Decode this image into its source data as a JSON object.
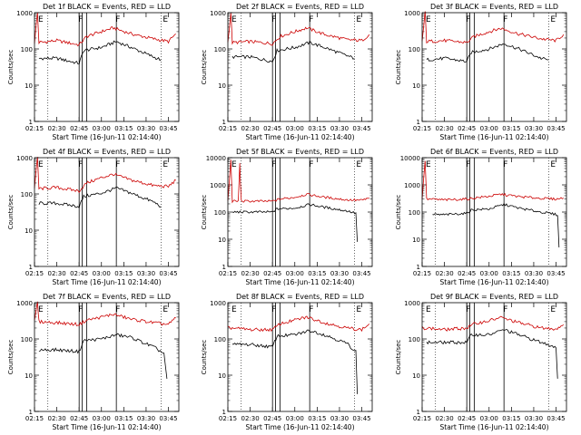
{
  "chart_data": [
    {
      "type": "line",
      "title": "Det 1f BLACK = Events, RED = LLD",
      "xlabel": "Start Time (16-Jun-11 02:14:40)",
      "ylabel": "Counts/sec",
      "yscale": "log",
      "ylim": [
        1,
        1000
      ],
      "xlim": [
        "02:15",
        "03:52"
      ],
      "x_ticks": [
        "02:15",
        "02:30",
        "02:45",
        "03:00",
        "03:15",
        "03:30",
        "03:45"
      ],
      "y_ticks": [
        "1",
        "10",
        "100",
        "1000"
      ],
      "markers": [
        "F",
        "F",
        "E"
      ],
      "series": [
        {
          "color": "#cc0000",
          "x": [
            "02:15",
            "02:17",
            "02:18",
            "02:30",
            "02:45",
            "02:50",
            "03:00",
            "03:08",
            "03:20",
            "03:35",
            "03:45",
            "03:50"
          ],
          "values": [
            150,
            1000,
            150,
            170,
            130,
            220,
            300,
            380,
            260,
            190,
            160,
            260
          ]
        },
        {
          "color": "#000000",
          "x": [
            "02:18",
            "02:30",
            "02:45",
            "02:48",
            "03:00",
            "03:10",
            "03:20",
            "03:35",
            "03:40"
          ],
          "values": [
            55,
            55,
            40,
            90,
            110,
            160,
            110,
            60,
            50
          ]
        }
      ]
    },
    {
      "type": "line",
      "title": "Det 2f BLACK = Events, RED = LLD",
      "xlabel": "Start Time (16-Jun-11 02:14:40)",
      "ylabel": "Counts/sec",
      "yscale": "log",
      "ylim": [
        1,
        1000
      ],
      "xlim": [
        "02:15",
        "03:52"
      ],
      "x_ticks": [
        "02:15",
        "02:30",
        "02:45",
        "03:00",
        "03:15",
        "03:30",
        "03:45"
      ],
      "y_ticks": [
        "1",
        "10",
        "100",
        "1000"
      ],
      "markers": [
        "F",
        "F",
        "E"
      ],
      "series": [
        {
          "color": "#cc0000",
          "x": [
            "02:15",
            "02:17",
            "02:18",
            "02:30",
            "02:45",
            "02:50",
            "03:00",
            "03:08",
            "03:20",
            "03:35",
            "03:45",
            "03:50"
          ],
          "values": [
            150,
            1000,
            150,
            160,
            140,
            220,
            300,
            380,
            250,
            180,
            170,
            250
          ]
        },
        {
          "color": "#000000",
          "x": [
            "02:18",
            "02:30",
            "02:45",
            "02:48",
            "03:00",
            "03:10",
            "03:20",
            "03:35",
            "03:40"
          ],
          "values": [
            60,
            60,
            45,
            90,
            110,
            150,
            110,
            65,
            55
          ]
        }
      ]
    },
    {
      "type": "line",
      "title": "Det 3f BLACK = Events, RED = LLD",
      "xlabel": "Start Time (16-Jun-11 02:14:40)",
      "ylabel": "Counts/sec",
      "yscale": "log",
      "ylim": [
        1,
        1000
      ],
      "xlim": [
        "02:15",
        "03:52"
      ],
      "x_ticks": [
        "02:15",
        "02:30",
        "02:45",
        "03:00",
        "03:15",
        "03:30",
        "03:45"
      ],
      "y_ticks": [
        "1",
        "10",
        "100",
        "1000"
      ],
      "markers": [
        "F",
        "F",
        "E"
      ],
      "series": [
        {
          "color": "#cc0000",
          "x": [
            "02:15",
            "02:17",
            "02:18",
            "02:30",
            "02:45",
            "02:50",
            "03:00",
            "03:08",
            "03:20",
            "03:35",
            "03:45",
            "03:50"
          ],
          "values": [
            160,
            1000,
            160,
            170,
            150,
            220,
            300,
            370,
            260,
            190,
            170,
            250
          ]
        },
        {
          "color": "#000000",
          "x": [
            "02:18",
            "02:30",
            "02:45",
            "02:48",
            "03:00",
            "03:10",
            "03:20",
            "03:35",
            "03:40"
          ],
          "values": [
            50,
            55,
            45,
            80,
            100,
            140,
            100,
            55,
            50
          ]
        }
      ]
    },
    {
      "type": "line",
      "title": "Det 4f BLACK = Events, RED = LLD",
      "xlabel": "Start Time (16-Jun-11 02:14:40)",
      "ylabel": "Counts/sec",
      "yscale": "log",
      "ylim": [
        1,
        1000
      ],
      "xlim": [
        "02:15",
        "03:52"
      ],
      "x_ticks": [
        "02:15",
        "02:30",
        "02:45",
        "03:00",
        "03:15",
        "03:30",
        "03:45"
      ],
      "y_ticks": [
        "1",
        "10",
        "100",
        "1000"
      ],
      "markers": [
        "F",
        "F",
        "E"
      ],
      "series": [
        {
          "color": "#cc0000",
          "x": [
            "02:15",
            "02:17",
            "02:18",
            "02:30",
            "02:45",
            "02:50",
            "03:00",
            "03:08",
            "03:20",
            "03:35",
            "03:45",
            "03:50"
          ],
          "values": [
            140,
            1000,
            140,
            150,
            120,
            200,
            280,
            350,
            240,
            170,
            160,
            240
          ]
        },
        {
          "color": "#000000",
          "x": [
            "02:18",
            "02:30",
            "02:45",
            "02:48",
            "03:00",
            "03:10",
            "03:20",
            "03:35",
            "03:40"
          ],
          "values": [
            55,
            55,
            45,
            85,
            105,
            145,
            105,
            60,
            45
          ]
        }
      ]
    },
    {
      "type": "line",
      "title": "Det 5f BLACK = Events, RED = LLD",
      "xlabel": "Start Time (16-Jun-11 02:14:40)",
      "ylabel": "Counts/sec",
      "yscale": "log",
      "ylim": [
        1,
        10000
      ],
      "xlim": [
        "02:15",
        "03:52"
      ],
      "x_ticks": [
        "02:15",
        "02:30",
        "02:45",
        "03:00",
        "03:15",
        "03:30",
        "03:45"
      ],
      "y_ticks": [
        "1",
        "10",
        "100",
        "1000",
        "10000"
      ],
      "markers": [
        "F",
        "F",
        "E"
      ],
      "series": [
        {
          "color": "#cc0000",
          "x": [
            "02:15",
            "02:17",
            "02:18",
            "02:22",
            "02:23",
            "02:24",
            "02:30",
            "02:45",
            "02:50",
            "03:00",
            "03:08",
            "03:20",
            "03:35",
            "03:45",
            "03:50"
          ],
          "values": [
            250,
            8000,
            250,
            250,
            6000,
            250,
            250,
            250,
            300,
            350,
            450,
            350,
            280,
            270,
            330
          ]
        },
        {
          "color": "#000000",
          "x": [
            "02:18",
            "02:30",
            "02:45",
            "02:48",
            "03:00",
            "03:10",
            "03:20",
            "03:35",
            "03:41",
            "03:42"
          ],
          "values": [
            100,
            100,
            100,
            130,
            140,
            190,
            150,
            110,
            90,
            8
          ]
        }
      ]
    },
    {
      "type": "line",
      "title": "Det 6f BLACK = Events, RED = LLD",
      "xlabel": "Start Time (16-Jun-11 02:14:40)",
      "ylabel": "Counts/sec",
      "yscale": "log",
      "ylim": [
        1,
        10000
      ],
      "xlim": [
        "02:15",
        "03:52"
      ],
      "x_ticks": [
        "02:15",
        "02:30",
        "02:45",
        "03:00",
        "03:15",
        "03:30",
        "03:45"
      ],
      "y_ticks": [
        "1",
        "10",
        "100",
        "1000",
        "10000"
      ],
      "markers": [
        "F",
        "F",
        "E"
      ],
      "series": [
        {
          "color": "#cc0000",
          "x": [
            "02:15",
            "02:17",
            "02:18",
            "02:30",
            "02:45",
            "02:50",
            "03:00",
            "03:08",
            "03:20",
            "03:35",
            "03:45",
            "03:50"
          ],
          "values": [
            300,
            8000,
            300,
            280,
            300,
            330,
            380,
            450,
            370,
            320,
            300,
            330
          ]
        },
        {
          "color": "#000000",
          "x": [
            "02:22",
            "02:30",
            "02:45",
            "02:48",
            "03:00",
            "03:10",
            "03:20",
            "03:35",
            "03:46",
            "03:47"
          ],
          "values": [
            80,
            80,
            90,
            120,
            130,
            190,
            140,
            100,
            80,
            5
          ]
        }
      ]
    },
    {
      "type": "line",
      "title": "Det 7f BLACK = Events, RED = LLD",
      "xlabel": "Start Time (16-Jun-11 02:14:40)",
      "ylabel": "Counts/sec",
      "yscale": "log",
      "ylim": [
        1,
        1000
      ],
      "xlim": [
        "02:15",
        "03:52"
      ],
      "x_ticks": [
        "02:15",
        "02:30",
        "02:45",
        "03:00",
        "03:15",
        "03:30",
        "03:45"
      ],
      "y_ticks": [
        "1",
        "10",
        "100",
        "1000"
      ],
      "markers": [
        "F",
        "F",
        "E"
      ],
      "series": [
        {
          "color": "#cc0000",
          "x": [
            "02:15",
            "02:17",
            "02:18",
            "02:30",
            "02:45",
            "02:50",
            "03:00",
            "03:08",
            "03:20",
            "03:35",
            "03:45",
            "03:50"
          ],
          "values": [
            300,
            1000,
            300,
            280,
            250,
            330,
            400,
            480,
            350,
            280,
            250,
            380
          ]
        },
        {
          "color": "#000000",
          "x": [
            "02:18",
            "02:30",
            "02:45",
            "02:48",
            "03:00",
            "03:10",
            "03:20",
            "03:35",
            "03:42",
            "03:44"
          ],
          "values": [
            50,
            50,
            45,
            90,
            100,
            130,
            110,
            60,
            40,
            8
          ]
        }
      ]
    },
    {
      "type": "line",
      "title": "Det 8f BLACK = Events, RED = LLD",
      "xlabel": "Start Time (16-Jun-11 02:14:40)",
      "ylabel": "Counts/sec",
      "yscale": "log",
      "ylim": [
        1,
        1000
      ],
      "xlim": [
        "02:15",
        "03:52"
      ],
      "x_ticks": [
        "02:15",
        "02:30",
        "02:45",
        "03:00",
        "03:15",
        "03:30",
        "03:45"
      ],
      "y_ticks": [
        "1",
        "10",
        "100",
        "1000"
      ],
      "markers": [
        "F",
        "F",
        "E"
      ],
      "series": [
        {
          "color": "#cc0000",
          "x": [
            "02:15",
            "02:18",
            "02:30",
            "02:45",
            "02:50",
            "03:00",
            "03:08",
            "03:20",
            "03:35",
            "03:45",
            "03:50"
          ],
          "values": [
            200,
            200,
            180,
            180,
            260,
            330,
            400,
            280,
            200,
            180,
            260
          ]
        },
        {
          "color": "#000000",
          "x": [
            "02:18",
            "02:30",
            "02:45",
            "02:48",
            "03:00",
            "03:10",
            "03:20",
            "03:35",
            "03:41",
            "03:42"
          ],
          "values": [
            70,
            70,
            60,
            120,
            130,
            170,
            130,
            75,
            45,
            3
          ]
        }
      ]
    },
    {
      "type": "line",
      "title": "Det 9f BLACK = Events, RED = LLD",
      "xlabel": "Start Time (16-Jun-11 02:14:40)",
      "ylabel": "Counts/sec",
      "yscale": "log",
      "ylim": [
        1,
        1000
      ],
      "xlim": [
        "02:15",
        "03:52"
      ],
      "x_ticks": [
        "02:15",
        "02:30",
        "02:45",
        "03:00",
        "03:15",
        "03:30",
        "03:45"
      ],
      "y_ticks": [
        "1",
        "10",
        "100",
        "1000"
      ],
      "markers": [
        "F",
        "F",
        "E"
      ],
      "series": [
        {
          "color": "#cc0000",
          "x": [
            "02:15",
            "02:18",
            "02:30",
            "02:45",
            "02:50",
            "03:00",
            "03:08",
            "03:20",
            "03:35",
            "03:45",
            "03:50"
          ],
          "values": [
            200,
            200,
            180,
            200,
            260,
            320,
            390,
            280,
            200,
            190,
            250
          ]
        },
        {
          "color": "#000000",
          "x": [
            "02:18",
            "02:30",
            "02:45",
            "02:48",
            "03:00",
            "03:10",
            "03:20",
            "03:35",
            "03:45",
            "03:46"
          ],
          "values": [
            80,
            80,
            80,
            130,
            130,
            180,
            130,
            80,
            60,
            8
          ]
        }
      ]
    }
  ]
}
